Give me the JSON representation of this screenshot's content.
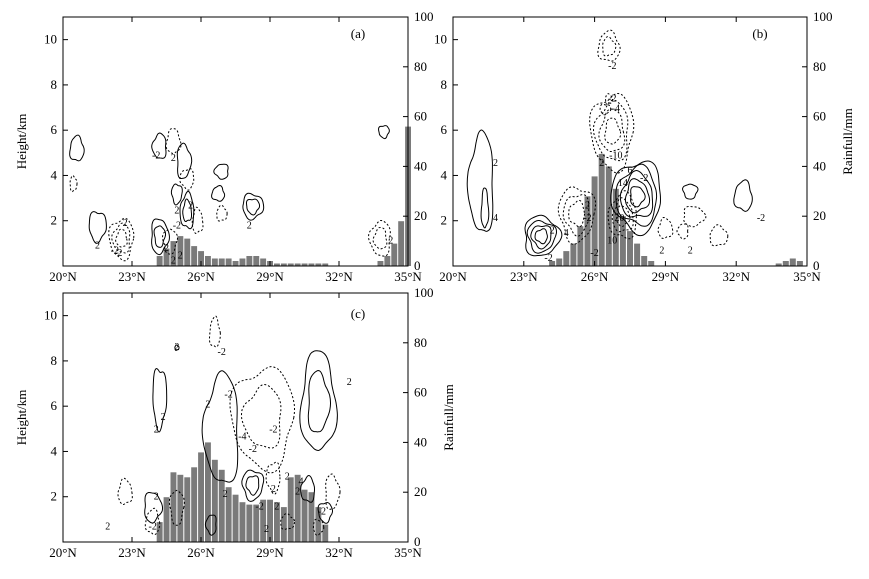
{
  "chart_data": [
    {
      "panel_label": "(a)",
      "type": "bar",
      "xlabel": "",
      "ylabel": "Height/km",
      "y2label": "",
      "x_ticks": [
        "20°N",
        "23°N",
        "26°N",
        "29°N",
        "32°N",
        "35°N"
      ],
      "y_ticks": [
        "2",
        "4",
        "6",
        "8",
        "10"
      ],
      "y2_ticks": [
        "0",
        "20",
        "40",
        "60",
        "80",
        "100"
      ],
      "xlim": [
        20,
        35
      ],
      "ylim": [
        0,
        11
      ],
      "y2lim": [
        0,
        100
      ],
      "series": [
        {
          "x": [
            24.2,
            24.5,
            24.8,
            25.1,
            25.4,
            25.7,
            26.0,
            26.3,
            26.6,
            26.9,
            27.2,
            27.5,
            27.8,
            28.1,
            28.4,
            28.7,
            29.0,
            29.3,
            29.6,
            29.9,
            30.2,
            30.5,
            30.8,
            31.1,
            31.4,
            33.8,
            34.1,
            34.4,
            34.7,
            35.0
          ],
          "values": [
            4,
            7,
            10,
            12,
            11,
            8,
            6,
            4,
            3,
            3,
            3,
            2,
            3,
            4,
            4,
            3,
            2,
            1,
            1,
            1,
            1,
            1,
            1,
            1,
            1,
            2,
            4,
            9,
            18,
            56
          ]
        }
      ],
      "contour_labels": [
        "2",
        "-2",
        "2",
        "-2",
        "2",
        "2",
        "-2",
        "2",
        "2",
        "2",
        "-2",
        "2",
        "2",
        "2"
      ]
    },
    {
      "panel_label": "(b)",
      "type": "bar",
      "xlabel": "",
      "ylabel": "",
      "y2label": "Rainfull/mm",
      "x_ticks": [
        "20°N",
        "23°N",
        "26°N",
        "29°N",
        "32°N",
        "35°N"
      ],
      "y_ticks": [
        "2",
        "4",
        "6",
        "8",
        "10"
      ],
      "y2_ticks": [
        "0",
        "20",
        "40",
        "60",
        "80",
        "100"
      ],
      "xlim": [
        20,
        35
      ],
      "ylim": [
        0,
        11
      ],
      "y2lim": [
        0,
        100
      ],
      "series": [
        {
          "x": [
            24.2,
            24.5,
            24.8,
            25.1,
            25.4,
            25.7,
            26.0,
            26.3,
            26.6,
            26.9,
            27.2,
            27.5,
            27.8,
            28.1,
            28.4,
            33.8,
            34.1,
            34.4,
            34.7
          ],
          "values": [
            2,
            3,
            6,
            9,
            16,
            28,
            36,
            45,
            40,
            31,
            20,
            14,
            9,
            4,
            2,
            1,
            2,
            3,
            2
          ]
        }
      ],
      "contour_labels": [
        "-2",
        "-2",
        "-4",
        "2",
        "2",
        "4",
        "-10",
        "6",
        "14",
        "-2",
        "2",
        "20",
        "-2",
        "10",
        "-2",
        "4",
        "2",
        "-2",
        "2",
        "2",
        "-2"
      ]
    },
    {
      "panel_label": "(c)",
      "type": "bar",
      "xlabel": "",
      "ylabel": "Height/km",
      "y2label": "Rainfull/mm",
      "x_ticks": [
        "20°N",
        "23°N",
        "26°N",
        "29°N",
        "32°N",
        "35°N"
      ],
      "y_ticks": [
        "2",
        "4",
        "6",
        "8",
        "10"
      ],
      "y2_ticks": [
        "0",
        "20",
        "40",
        "60",
        "80",
        "100"
      ],
      "xlim": [
        20,
        35
      ],
      "ylim": [
        0,
        11
      ],
      "y2lim": [
        0,
        100
      ],
      "series": [
        {
          "x": [
            24.2,
            24.5,
            24.8,
            25.1,
            25.4,
            25.7,
            26.0,
            26.3,
            26.6,
            26.9,
            27.2,
            27.5,
            27.8,
            28.1,
            28.4,
            28.7,
            29.0,
            29.3,
            29.6,
            29.9,
            30.2,
            30.5,
            30.8,
            31.1,
            31.4
          ],
          "values": [
            8,
            18,
            28,
            27,
            26,
            30,
            36,
            40,
            33,
            29,
            22,
            19,
            16,
            15,
            15,
            17,
            17,
            16,
            14,
            26,
            27,
            21,
            20,
            14,
            7
          ]
        }
      ],
      "contour_labels": [
        "2",
        "-2",
        "-2",
        "2",
        "2",
        "-2",
        "2",
        "-4",
        "-2",
        "2",
        "2",
        "2",
        "-2",
        "2",
        "-2",
        "2",
        "2",
        "4",
        "2",
        "2",
        "-2",
        "2"
      ]
    }
  ]
}
